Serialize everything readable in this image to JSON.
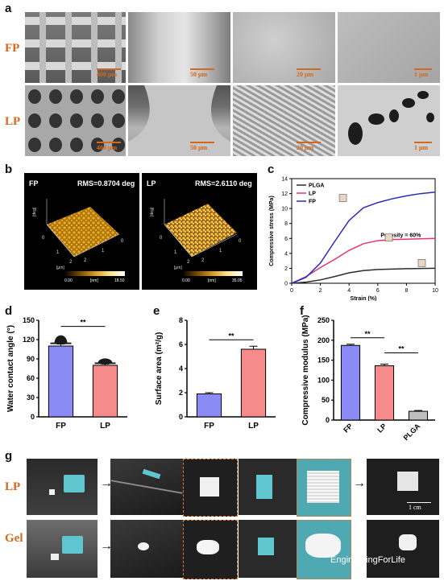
{
  "panel_a": {
    "letter": "a",
    "rows": [
      {
        "label": "FP",
        "scales": [
          "400 μm",
          "50 μm",
          "20 μm",
          "1 μm"
        ]
      },
      {
        "label": "LP",
        "scales": [
          "400 μm",
          "50 μm",
          "20 μm",
          "1 μm"
        ]
      }
    ]
  },
  "panel_b": {
    "letter": "b",
    "maps": [
      {
        "label": "FP",
        "rms": "RMS=0.8704 deg",
        "cmin": "0.00",
        "cunit": "[nm]",
        "cmax": "18.50"
      },
      {
        "label": "LP",
        "rms": "RMS=2.6110 deg",
        "cmin": "0.00",
        "cunit": "[nm]",
        "cmax": "35.05"
      }
    ],
    "axis_unit": "[μm]",
    "z_label": "[deg]"
  },
  "panel_c": {
    "letter": "c",
    "annotation": "Porosity = 60%"
  },
  "panel_d": {
    "letter": "d"
  },
  "panel_e": {
    "letter": "e"
  },
  "panel_f": {
    "letter": "f"
  },
  "panel_g": {
    "letter": "g",
    "rows": [
      "LP",
      "Gel"
    ],
    "scale": "1 cm",
    "watermark": "EngineeringForLife"
  },
  "chart_data": [
    {
      "type": "line",
      "id": "c",
      "xlabel": "Strain (%)",
      "ylabel": "Compressive stress (MPa)",
      "xlim": [
        0,
        10
      ],
      "ylim": [
        0,
        14
      ],
      "xticks": [
        0,
        2,
        4,
        6,
        8,
        10
      ],
      "yticks": [
        0,
        2,
        4,
        6,
        8,
        10,
        12,
        14
      ],
      "legend": "top-left",
      "series": [
        {
          "name": "PLGA",
          "color": "#2b2b2b",
          "x": [
            0,
            1,
            2,
            3,
            4,
            5,
            6,
            7,
            8,
            9,
            10
          ],
          "y": [
            0,
            0.15,
            0.45,
            0.9,
            1.4,
            1.7,
            1.85,
            1.9,
            1.95,
            1.98,
            2.0
          ]
        },
        {
          "name": "LP",
          "color": "#e8336e",
          "x": [
            0,
            1,
            2,
            3,
            4,
            5,
            6,
            7,
            8,
            9,
            10
          ],
          "y": [
            0,
            0.9,
            2.1,
            3.2,
            4.4,
            5.3,
            5.7,
            5.85,
            5.9,
            5.95,
            6.0
          ]
        },
        {
          "name": "FP",
          "color": "#2a2ab8",
          "x": [
            0,
            1,
            2,
            3,
            4,
            5,
            6,
            7,
            8,
            9,
            10
          ],
          "y": [
            0,
            0.8,
            2.7,
            5.6,
            8.4,
            10.1,
            10.8,
            11.3,
            11.7,
            12.0,
            12.2
          ]
        }
      ]
    },
    {
      "type": "bar",
      "id": "d",
      "ylabel": "Water contact angle (°)",
      "categories": [
        "FP",
        "LP"
      ],
      "values": [
        110,
        80
      ],
      "errors": [
        3,
        2
      ],
      "colors": [
        "#8b8bf5",
        "#f58b8b"
      ],
      "ylim": [
        0,
        150
      ],
      "yticks": [
        0,
        30,
        60,
        90,
        120,
        150
      ],
      "significance": "**"
    },
    {
      "type": "bar",
      "id": "e",
      "ylabel": "Surface area (m²/g)",
      "categories": [
        "FP",
        "LP"
      ],
      "values": [
        1.9,
        5.6
      ],
      "errors": [
        0.1,
        0.25
      ],
      "colors": [
        "#8b8bf5",
        "#f58b8b"
      ],
      "ylim": [
        0,
        8
      ],
      "yticks": [
        0,
        2,
        4,
        6,
        8
      ],
      "significance": "**"
    },
    {
      "type": "bar",
      "id": "f",
      "ylabel": "Compressive modulus (MPa)",
      "categories": [
        "FP",
        "LP",
        "PLGA"
      ],
      "values": [
        187,
        136,
        22
      ],
      "errors": [
        3,
        4,
        2
      ],
      "colors": [
        "#8b8bf5",
        "#f58b8b",
        "#bdbdbd"
      ],
      "ylim": [
        0,
        250
      ],
      "yticks": [
        0,
        50,
        100,
        150,
        200,
        250
      ],
      "significance": [
        "**",
        "**"
      ]
    }
  ]
}
